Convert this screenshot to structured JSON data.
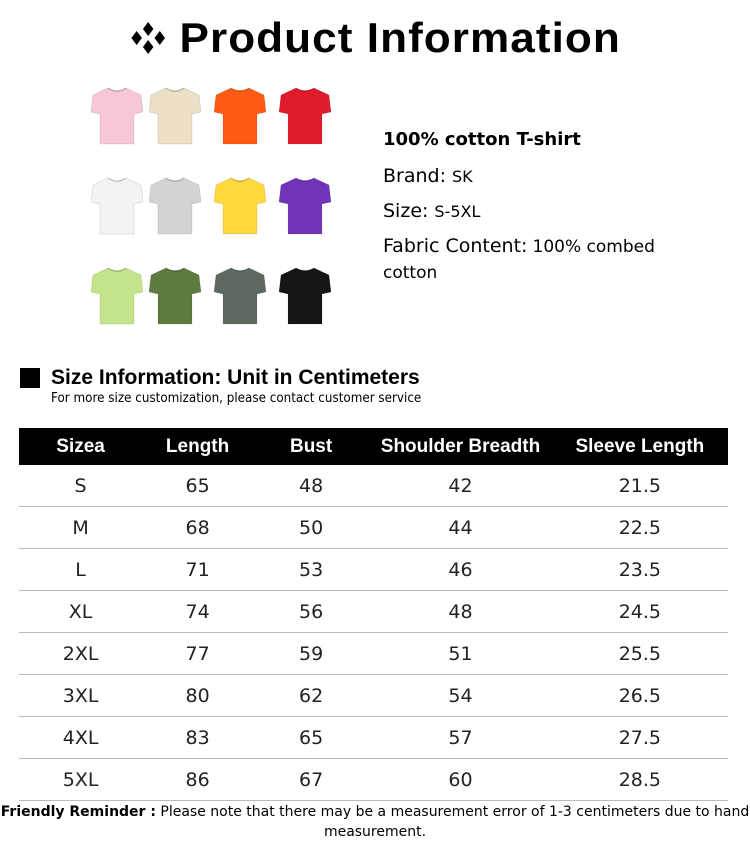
{
  "header": {
    "title": "Product Information",
    "icon": "diamond-cluster-icon"
  },
  "shirts": [
    {
      "color": "#f7c6d9"
    },
    {
      "color": "#ebdfc5"
    },
    {
      "color": "#ff5a14"
    },
    {
      "color": "#e01b2b"
    },
    {
      "color": "#f3f3f6"
    },
    {
      "color": "#d3d3d3"
    },
    {
      "color": "#ffd83b"
    },
    {
      "color": "#7134b8"
    },
    {
      "color": "#c3e48b"
    },
    {
      "color": "#5f7a3e"
    },
    {
      "color": "#5e6a60"
    },
    {
      "color": "#151515"
    }
  ],
  "product": {
    "name": "100% cotton T-shirt",
    "brand_label": "Brand:",
    "brand": "SK",
    "size_label": "Size:",
    "size": "S-5XL",
    "fabric_label": "Fabric Content:",
    "fabric": "100% combed cotton"
  },
  "size_info": {
    "heading": "Size Information:  Unit in Centimeters",
    "subheading": "For more size customization, please contact customer service"
  },
  "table": {
    "headers": [
      "Sizea",
      "Length",
      "Bust",
      "Shoulder Breadth",
      "Sleeve Length"
    ],
    "rows": [
      [
        "S",
        "65",
        "48",
        "42",
        "21.5"
      ],
      [
        "M",
        "68",
        "50",
        "44",
        "22.5"
      ],
      [
        "L",
        "71",
        "53",
        "46",
        "23.5"
      ],
      [
        "XL",
        "74",
        "56",
        "48",
        "24.5"
      ],
      [
        "2XL",
        "77",
        "59",
        "51",
        "25.5"
      ],
      [
        "3XL",
        "80",
        "62",
        "54",
        "26.5"
      ],
      [
        "4XL",
        "83",
        "65",
        "57",
        "27.5"
      ],
      [
        "5XL",
        "86",
        "67",
        "60",
        "28.5"
      ]
    ]
  },
  "footer": {
    "label": "Friendly Reminder :",
    "text": "Please note that there may be a measurement error of 1-3 centimeters due to hand measurement."
  }
}
